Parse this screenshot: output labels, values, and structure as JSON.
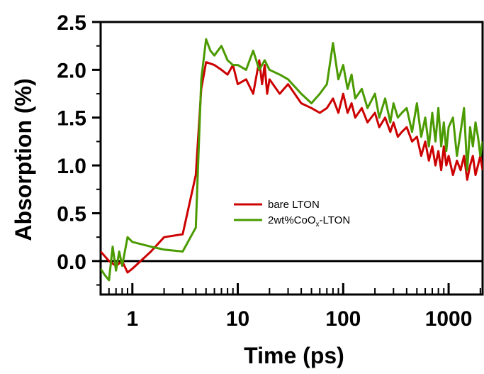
{
  "chart_data": {
    "type": "line",
    "xlabel": "Time (ps)",
    "ylabel": "Absorption (%)",
    "x_scale": "log",
    "xlim": [
      0.5,
      2100
    ],
    "ylim": [
      -0.35,
      2.5
    ],
    "x_ticks": [
      1,
      10,
      100,
      1000
    ],
    "y_ticks": [
      0.0,
      0.5,
      1.0,
      1.5,
      2.0,
      2.5
    ],
    "x_tick_labels": [
      "1",
      "10",
      "100",
      "1000"
    ],
    "y_tick_labels": [
      "0.0",
      "0.5",
      "1.0",
      "1.5",
      "2.0",
      "2.5"
    ],
    "zero_line": 0,
    "legend_position": "center-right",
    "series": [
      {
        "name": "bare LTON",
        "label_main": "bare LTON",
        "color": "#cc0000",
        "x": [
          0.5,
          0.6,
          0.7,
          0.8,
          0.9,
          1.0,
          1.5,
          2.0,
          3.0,
          4.0,
          4.5,
          5.0,
          6.0,
          7.0,
          8.0,
          9.0,
          10,
          12,
          14,
          16,
          17,
          18,
          19,
          20,
          25,
          30,
          40,
          50,
          60,
          70,
          80,
          90,
          100,
          110,
          120,
          130,
          150,
          170,
          200,
          220,
          250,
          280,
          300,
          330,
          360,
          400,
          450,
          500,
          550,
          600,
          650,
          700,
          750,
          800,
          850,
          900,
          950,
          1000,
          1100,
          1200,
          1300,
          1400,
          1500,
          1600,
          1700,
          1800,
          1900,
          2000,
          2100
        ],
        "y": [
          0.1,
          0.0,
          -0.05,
          0.0,
          -0.12,
          -0.08,
          0.1,
          0.25,
          0.28,
          0.9,
          1.8,
          2.08,
          2.05,
          2.0,
          1.95,
          2.05,
          1.85,
          1.9,
          1.75,
          2.1,
          1.85,
          2.05,
          1.75,
          1.9,
          1.75,
          1.85,
          1.65,
          1.6,
          1.55,
          1.6,
          1.7,
          1.55,
          1.75,
          1.55,
          1.65,
          1.5,
          1.6,
          1.45,
          1.55,
          1.4,
          1.5,
          1.35,
          1.45,
          1.3,
          1.35,
          1.4,
          1.25,
          1.3,
          1.1,
          1.25,
          1.05,
          1.2,
          1.0,
          1.15,
          0.95,
          1.2,
          1.0,
          1.1,
          0.9,
          1.05,
          0.95,
          1.1,
          0.85,
          1.0,
          1.1,
          0.9,
          1.0,
          1.1,
          0.95
        ]
      },
      {
        "name": "2wt%CoOx-LTON",
        "label_main": "2wt%CoO",
        "label_sub": "x",
        "label_tail": "-LTON",
        "color": "#4a9a00",
        "x": [
          0.5,
          0.55,
          0.6,
          0.65,
          0.7,
          0.75,
          0.8,
          0.9,
          1.0,
          1.5,
          2.0,
          3.0,
          4.0,
          4.5,
          5.0,
          5.5,
          6.0,
          7.0,
          8.0,
          9.0,
          10,
          12,
          14,
          16,
          18,
          20,
          25,
          30,
          40,
          50,
          60,
          70,
          80,
          90,
          100,
          110,
          120,
          130,
          150,
          170,
          200,
          220,
          250,
          280,
          300,
          330,
          360,
          400,
          450,
          500,
          550,
          600,
          650,
          700,
          750,
          800,
          850,
          900,
          950,
          1000,
          1100,
          1200,
          1300,
          1400,
          1500,
          1600,
          1700,
          1800,
          1900,
          2000,
          2100
        ],
        "y": [
          -0.08,
          -0.15,
          -0.2,
          0.15,
          -0.1,
          0.1,
          -0.05,
          0.25,
          0.2,
          0.15,
          0.12,
          0.1,
          0.35,
          1.9,
          2.32,
          2.2,
          2.15,
          2.25,
          2.1,
          2.05,
          2.05,
          2.0,
          2.2,
          2.0,
          2.1,
          2.0,
          1.95,
          1.9,
          1.75,
          1.65,
          1.75,
          1.85,
          2.28,
          1.9,
          2.05,
          1.8,
          1.95,
          1.7,
          1.8,
          1.6,
          1.75,
          1.5,
          1.7,
          1.45,
          1.65,
          1.5,
          1.55,
          1.6,
          1.35,
          1.65,
          1.3,
          1.5,
          1.2,
          1.55,
          1.25,
          1.6,
          1.2,
          1.45,
          1.15,
          1.4,
          1.5,
          1.1,
          1.35,
          1.6,
          0.95,
          1.4,
          1.2,
          1.45,
          1.3,
          1.1,
          1.25
        ]
      }
    ]
  }
}
